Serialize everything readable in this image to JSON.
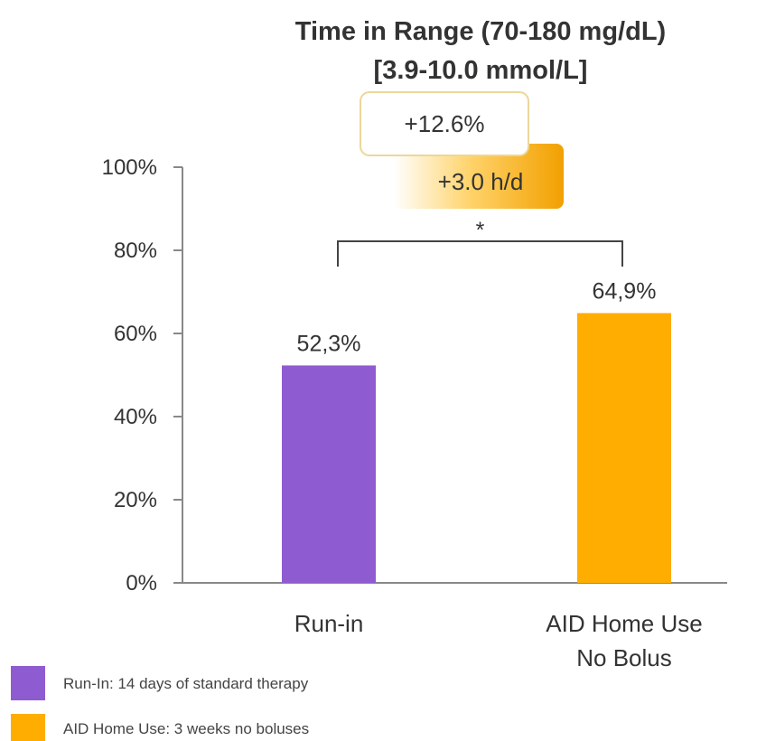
{
  "chart_data": {
    "type": "bar",
    "title_lines": [
      "Time in Range (70-180 mg/dL)",
      "[3.9-10.0 mmol/L]"
    ],
    "categories": [
      [
        "Run-in"
      ],
      [
        "AID Home Use",
        "No Bolus"
      ]
    ],
    "values": [
      52.3,
      64.9
    ],
    "data_labels": [
      "52,3%",
      "64,9%"
    ],
    "colors": [
      "#8e5bd1",
      "#ffad00"
    ],
    "ylim": [
      0,
      100
    ],
    "yticks": [
      0,
      20,
      40,
      60,
      80,
      100
    ],
    "ytick_labels": [
      "0%",
      "20%",
      "40%",
      "60%",
      "80%",
      "100%"
    ],
    "grid": false,
    "significance_marker": "*",
    "annotations": [
      "+12.6%",
      "+3.0 h/d"
    ],
    "legend": {
      "placement": "bottom-left",
      "entries": [
        {
          "label": "Run-In: 14 days of standard therapy",
          "color": "#8e5bd1"
        },
        {
          "label": "AID Home Use: 3 weeks no boluses",
          "color": "#ffad00"
        }
      ]
    }
  }
}
